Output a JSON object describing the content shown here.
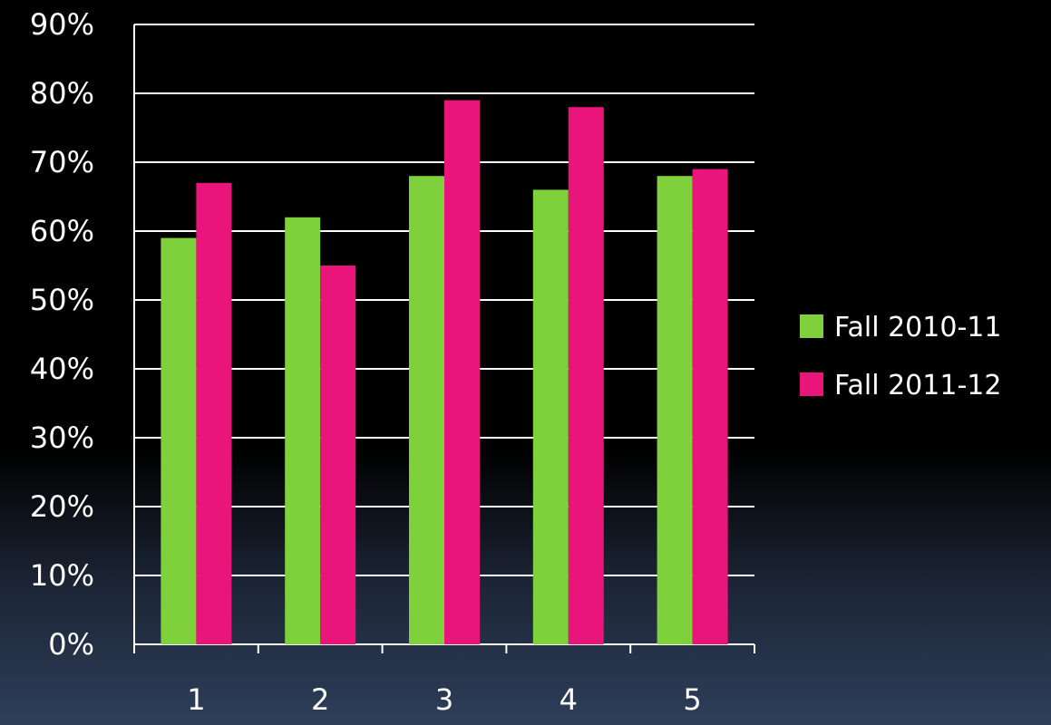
{
  "chart_data": {
    "type": "bar",
    "title": "",
    "xlabel": "",
    "ylabel": "",
    "categories": [
      "1",
      "2",
      "3",
      "4",
      "5"
    ],
    "series": [
      {
        "name": "Fall 2010-11",
        "color": "#7fd13b",
        "values": [
          59,
          62,
          68,
          66,
          68
        ]
      },
      {
        "name": "Fall 2011-12",
        "color": "#ea157a",
        "values": [
          67,
          55,
          79,
          78,
          69
        ]
      }
    ],
    "ylim": [
      0,
      90
    ],
    "y_ticks": [
      0,
      10,
      20,
      30,
      40,
      50,
      60,
      70,
      80,
      90
    ],
    "y_tick_format": "%",
    "grid": true,
    "legend_position": "right"
  },
  "colors": {
    "background_top": "#000000",
    "background_bottom": "#2e3f5a",
    "grid": "#ffffff",
    "text": "#ffffff"
  }
}
